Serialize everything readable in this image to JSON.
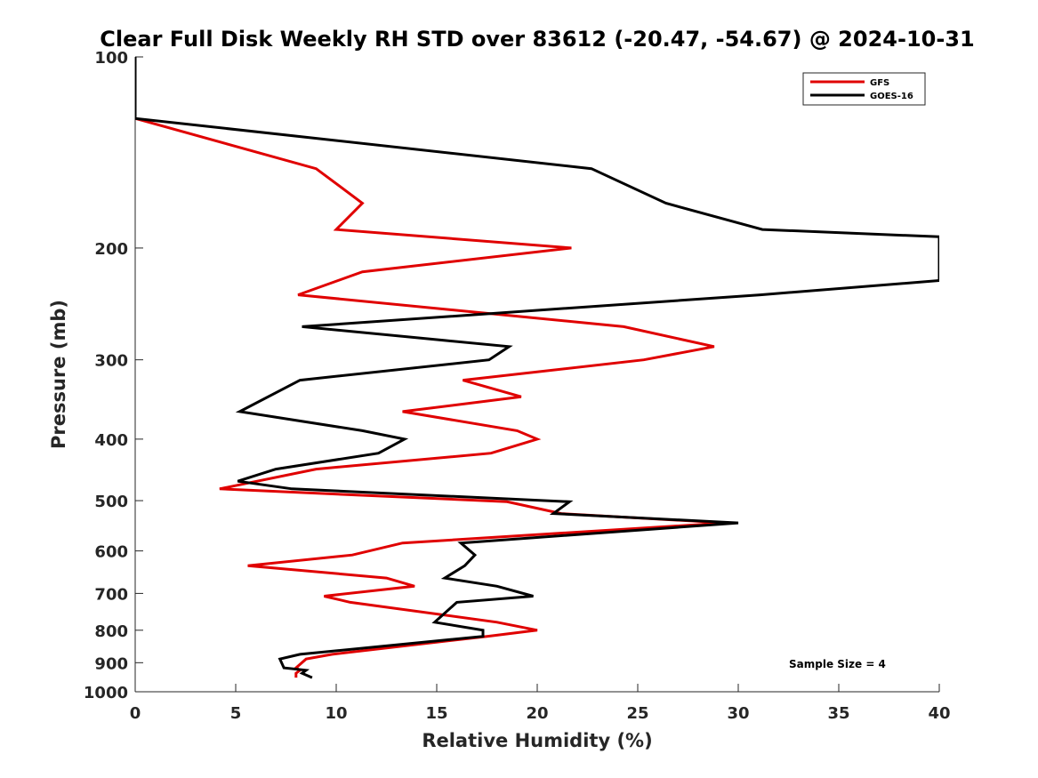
{
  "chart_data": {
    "type": "line",
    "title": "Clear Full Disk Weekly RH STD over 83612 (-20.47, -54.67) @ 2024-10-31",
    "xlabel": "Relative Humidity (%)",
    "ylabel": "Pressure (mb)",
    "xlim": [
      0,
      40
    ],
    "ylim": [
      100,
      1000
    ],
    "y_scale": "log",
    "y_reversed": true,
    "grid": false,
    "legend_position": "top-right",
    "x_ticks": [
      0,
      5,
      10,
      15,
      20,
      25,
      30,
      35,
      40
    ],
    "x_tick_labels": [
      "0",
      "5",
      "10",
      "15",
      "20",
      "25",
      "30",
      "35",
      "40"
    ],
    "y_ticks": [
      100,
      200,
      300,
      400,
      500,
      600,
      700,
      800,
      900,
      1000
    ],
    "y_tick_labels": [
      "100",
      "200",
      "300",
      "400",
      "500",
      "600",
      "700",
      "800",
      "900",
      "1000"
    ],
    "series": [
      {
        "name": "GFS",
        "color": "#e00000",
        "points": [
          [
            0,
            100
          ],
          [
            0,
            125
          ],
          [
            9,
            150
          ],
          [
            11.3,
            170
          ],
          [
            10,
            187
          ],
          [
            21.7,
            200
          ],
          [
            11.3,
            218
          ],
          [
            8.1,
            237
          ],
          [
            24.3,
            266
          ],
          [
            28.8,
            286
          ],
          [
            25.3,
            300
          ],
          [
            16.3,
            323
          ],
          [
            19.2,
            343
          ],
          [
            13.3,
            362
          ],
          [
            19,
            388
          ],
          [
            20,
            400
          ],
          [
            17.7,
            421
          ],
          [
            9,
            446
          ],
          [
            4.2,
            479
          ],
          [
            18.5,
            502
          ],
          [
            21.2,
            524
          ],
          [
            29.4,
            542
          ],
          [
            13.3,
            583
          ],
          [
            10.8,
            609
          ],
          [
            5.6,
            633
          ],
          [
            12.5,
            662
          ],
          [
            13.9,
            682
          ],
          [
            9.4,
            707
          ],
          [
            10.7,
            723
          ],
          [
            18,
            777
          ],
          [
            20,
            800
          ],
          [
            17.5,
            818
          ],
          [
            9.8,
            873
          ],
          [
            8.5,
            888
          ],
          [
            8,
            917
          ],
          [
            8.2,
            925
          ],
          [
            8,
            935
          ],
          [
            8,
            950
          ]
        ]
      },
      {
        "name": "GOES-16",
        "color": "#000000",
        "points": [
          [
            0,
            100
          ],
          [
            0,
            125
          ],
          [
            22.7,
            150
          ],
          [
            26.4,
            170
          ],
          [
            31.2,
            187
          ],
          [
            40,
            192
          ],
          [
            40,
            225
          ],
          [
            31.1,
            237
          ],
          [
            8.3,
            266
          ],
          [
            18.6,
            286
          ],
          [
            17.6,
            300
          ],
          [
            8.2,
            323
          ],
          [
            5.2,
            362
          ],
          [
            11.3,
            388
          ],
          [
            13.4,
            400
          ],
          [
            12.1,
            421
          ],
          [
            7,
            446
          ],
          [
            5.1,
            466
          ],
          [
            7.8,
            479
          ],
          [
            21.6,
            502
          ],
          [
            20.8,
            524
          ],
          [
            30,
            542
          ],
          [
            16.2,
            583
          ],
          [
            16.9,
            609
          ],
          [
            16.4,
            633
          ],
          [
            15.4,
            662
          ],
          [
            18,
            682
          ],
          [
            19.8,
            707
          ],
          [
            16,
            723
          ],
          [
            14.9,
            777
          ],
          [
            17.3,
            800
          ],
          [
            17.3,
            818
          ],
          [
            8.2,
            873
          ],
          [
            7.2,
            888
          ],
          [
            7.4,
            917
          ],
          [
            8.5,
            925
          ],
          [
            8.3,
            935
          ],
          [
            8.8,
            950
          ]
        ]
      }
    ],
    "annotation": "Sample Size = 4"
  }
}
